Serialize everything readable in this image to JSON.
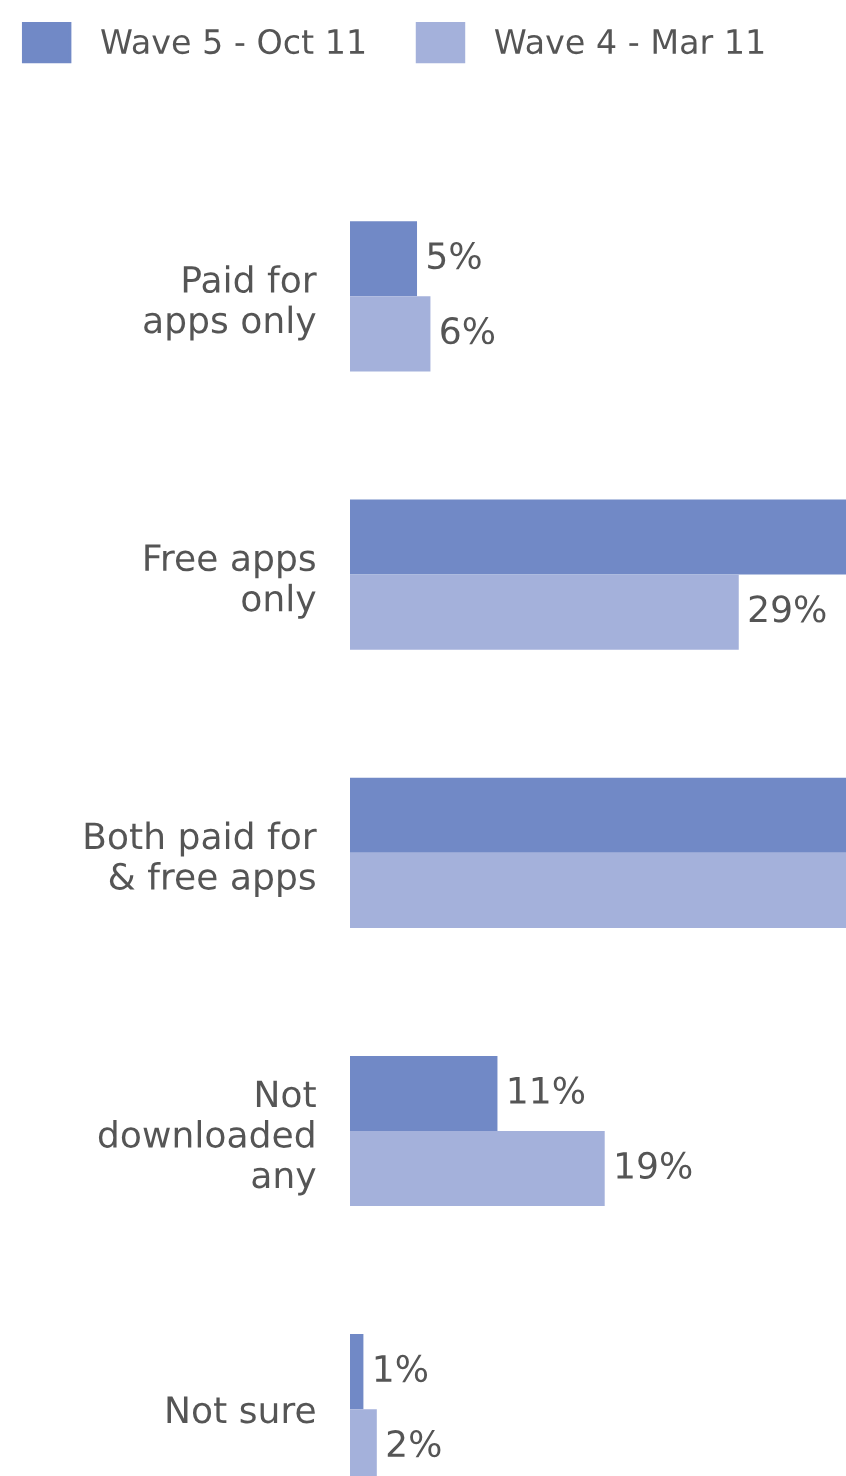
{
  "chart_data": {
    "type": "bar",
    "orientation": "horizontal",
    "categories": [
      "Paid for\napps only",
      "Free apps\nonly",
      "Both paid for\n& free apps",
      "Not\ndownloaded\nany",
      "Not sure"
    ],
    "series": [
      {
        "name": "Wave 5 - Oct 11",
        "color": "#7189c6",
        "values": [
          5,
          37,
          37,
          11,
          1
        ],
        "value_labels": [
          "5%",
          null,
          null,
          "11%",
          "1%"
        ]
      },
      {
        "name": "Wave 4 - Mar 11",
        "color": "#a4b1db",
        "values": [
          6,
          29,
          37,
          19,
          2
        ],
        "value_labels": [
          "6%",
          "29%",
          null,
          "19%",
          "2%"
        ]
      }
    ],
    "xlim": [
      0,
      37
    ],
    "legend": "top",
    "grid": false,
    "tick_labels": "y"
  }
}
